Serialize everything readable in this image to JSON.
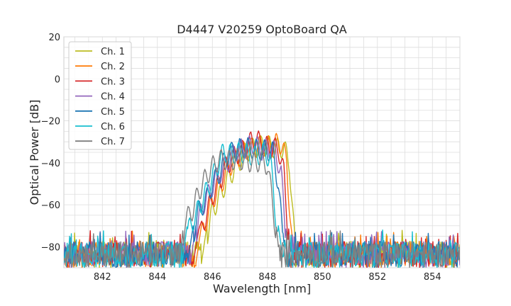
{
  "chart_data": {
    "type": "line",
    "title": "D4447 V20259 OptoBoard QA",
    "xlabel": "Wavelength [nm]",
    "ylabel": "Optical Power [dB]",
    "xlim": [
      840.6,
      855.0
    ],
    "ylim": [
      -90,
      20
    ],
    "x_ticks": [
      842,
      844,
      846,
      848,
      850,
      852,
      854
    ],
    "y_ticks": [
      20,
      0,
      -20,
      -40,
      -60,
      -80
    ],
    "grid": true,
    "legend_position": "top-left",
    "noise_floor": [
      -90,
      -72
    ],
    "series": [
      {
        "name": "Ch. 1",
        "color": "#bcbd22",
        "points": [
          [
            845.6,
            -88
          ],
          [
            845.8,
            -70
          ],
          [
            846.0,
            -58
          ],
          [
            846.3,
            -50
          ],
          [
            846.5,
            -44
          ],
          [
            846.8,
            -38
          ],
          [
            847.0,
            -34
          ],
          [
            847.2,
            -30
          ],
          [
            847.5,
            -28
          ],
          [
            847.8,
            -27
          ],
          [
            848.0,
            -27
          ],
          [
            848.3,
            -28
          ],
          [
            848.6,
            -28
          ],
          [
            848.8,
            -35
          ],
          [
            849.0,
            -75
          ]
        ]
      },
      {
        "name": "Ch. 2",
        "color": "#ff7f0e",
        "points": [
          [
            845.4,
            -88
          ],
          [
            845.6,
            -70
          ],
          [
            845.9,
            -57
          ],
          [
            846.1,
            -50
          ],
          [
            846.4,
            -43
          ],
          [
            846.6,
            -37
          ],
          [
            846.9,
            -33
          ],
          [
            847.1,
            -30
          ],
          [
            847.4,
            -28
          ],
          [
            847.7,
            -27
          ],
          [
            848.0,
            -27
          ],
          [
            848.3,
            -26
          ],
          [
            848.5,
            -26
          ],
          [
            848.7,
            -34
          ],
          [
            848.9,
            -75
          ]
        ]
      },
      {
        "name": "Ch. 3",
        "color": "#d62728",
        "points": [
          [
            845.3,
            -88
          ],
          [
            845.5,
            -72
          ],
          [
            845.8,
            -59
          ],
          [
            846.0,
            -51
          ],
          [
            846.3,
            -43
          ],
          [
            846.5,
            -37
          ],
          [
            846.8,
            -32
          ],
          [
            847.1,
            -29
          ],
          [
            847.4,
            -25
          ],
          [
            847.6,
            -24
          ],
          [
            847.9,
            -27
          ],
          [
            848.1,
            -28
          ],
          [
            848.4,
            -28
          ],
          [
            848.6,
            -40
          ],
          [
            848.8,
            -76
          ]
        ]
      },
      {
        "name": "Ch. 4",
        "color": "#9467bd",
        "points": [
          [
            845.2,
            -88
          ],
          [
            845.4,
            -70
          ],
          [
            845.6,
            -57
          ],
          [
            845.9,
            -49
          ],
          [
            846.1,
            -43
          ],
          [
            846.4,
            -38
          ],
          [
            846.7,
            -32
          ],
          [
            846.9,
            -29
          ],
          [
            847.2,
            -28
          ],
          [
            847.5,
            -26
          ],
          [
            847.8,
            -29
          ],
          [
            848.1,
            -28
          ],
          [
            848.3,
            -30
          ],
          [
            848.5,
            -40
          ],
          [
            848.7,
            -76
          ]
        ]
      },
      {
        "name": "Ch. 5",
        "color": "#1f77b4",
        "points": [
          [
            845.1,
            -88
          ],
          [
            845.3,
            -70
          ],
          [
            845.5,
            -58
          ],
          [
            845.8,
            -52
          ],
          [
            846.0,
            -45
          ],
          [
            846.3,
            -39
          ],
          [
            846.5,
            -32
          ],
          [
            846.8,
            -29
          ],
          [
            847.1,
            -28
          ],
          [
            847.4,
            -28
          ],
          [
            847.7,
            -29
          ],
          [
            848.0,
            -29
          ],
          [
            848.2,
            -30
          ],
          [
            848.4,
            -45
          ],
          [
            848.6,
            -78
          ]
        ]
      },
      {
        "name": "Ch. 6",
        "color": "#17becf",
        "points": [
          [
            844.9,
            -88
          ],
          [
            845.1,
            -68
          ],
          [
            845.4,
            -60
          ],
          [
            845.6,
            -54
          ],
          [
            845.9,
            -45
          ],
          [
            846.2,
            -36
          ],
          [
            846.4,
            -30
          ],
          [
            846.7,
            -31
          ],
          [
            847.0,
            -30
          ],
          [
            847.3,
            -31
          ],
          [
            847.6,
            -32
          ],
          [
            847.9,
            -30
          ],
          [
            848.1,
            -33
          ],
          [
            848.3,
            -60
          ],
          [
            848.5,
            -80
          ]
        ]
      },
      {
        "name": "Ch. 7",
        "color": "#7f7f7f",
        "points": [
          [
            844.8,
            -88
          ],
          [
            845.0,
            -63
          ],
          [
            845.3,
            -57
          ],
          [
            845.5,
            -49
          ],
          [
            845.8,
            -41
          ],
          [
            846.1,
            -35
          ],
          [
            846.4,
            -33
          ],
          [
            846.6,
            -34
          ],
          [
            846.9,
            -33
          ],
          [
            847.2,
            -34
          ],
          [
            847.5,
            -35
          ],
          [
            847.8,
            -34
          ],
          [
            848.0,
            -36
          ],
          [
            848.2,
            -55
          ],
          [
            848.4,
            -80
          ]
        ]
      }
    ]
  }
}
